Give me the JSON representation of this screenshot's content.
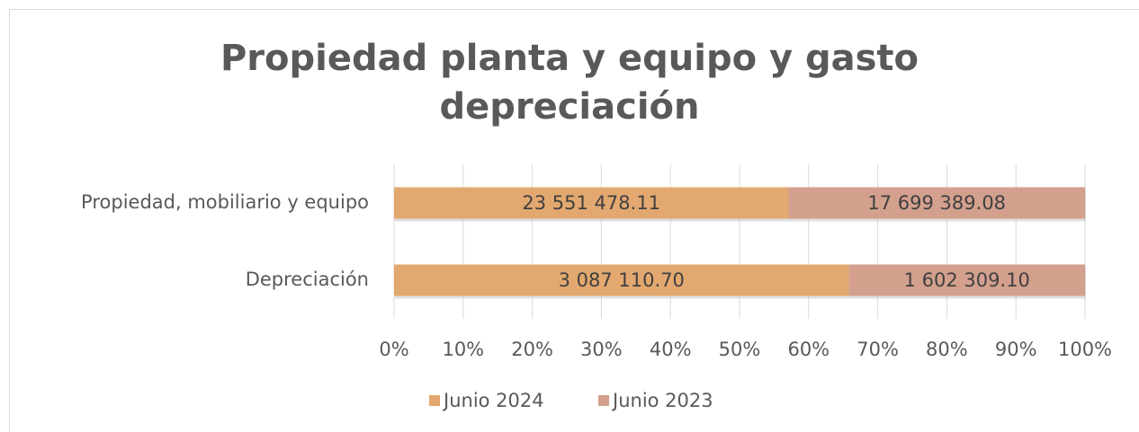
{
  "chart_data": {
    "type": "bar",
    "orientation": "horizontal",
    "stacking": "percent",
    "title": "Propiedad planta y equipo y gasto depreciación",
    "categories": [
      "Propiedad, mobiliario y equipo",
      "Depreciación"
    ],
    "series": [
      {
        "name": "Junio 2024",
        "color": "#e3a86f",
        "values": [
          23551478.11,
          3087110.7
        ],
        "value_labels": [
          "23 551 478.11",
          "3 087 110.70"
        ]
      },
      {
        "name": "Junio 2023",
        "color": "#d3a08e",
        "values": [
          17699389.08,
          1602309.1
        ],
        "value_labels": [
          "17 699 389.08",
          "1 602 309.10"
        ]
      }
    ],
    "xlim": [
      0,
      100
    ],
    "xticks": [
      {
        "value": 0,
        "label": "0%"
      },
      {
        "value": 10,
        "label": "10%"
      },
      {
        "value": 20,
        "label": "20%"
      },
      {
        "value": 30,
        "label": "30%"
      },
      {
        "value": 40,
        "label": "40%"
      },
      {
        "value": 50,
        "label": "50%"
      },
      {
        "value": 60,
        "label": "60%"
      },
      {
        "value": 70,
        "label": "70%"
      },
      {
        "value": 80,
        "label": "80%"
      },
      {
        "value": 90,
        "label": "90%"
      },
      {
        "value": 100,
        "label": "100%"
      }
    ],
    "grid": true,
    "legend": "bottom"
  }
}
